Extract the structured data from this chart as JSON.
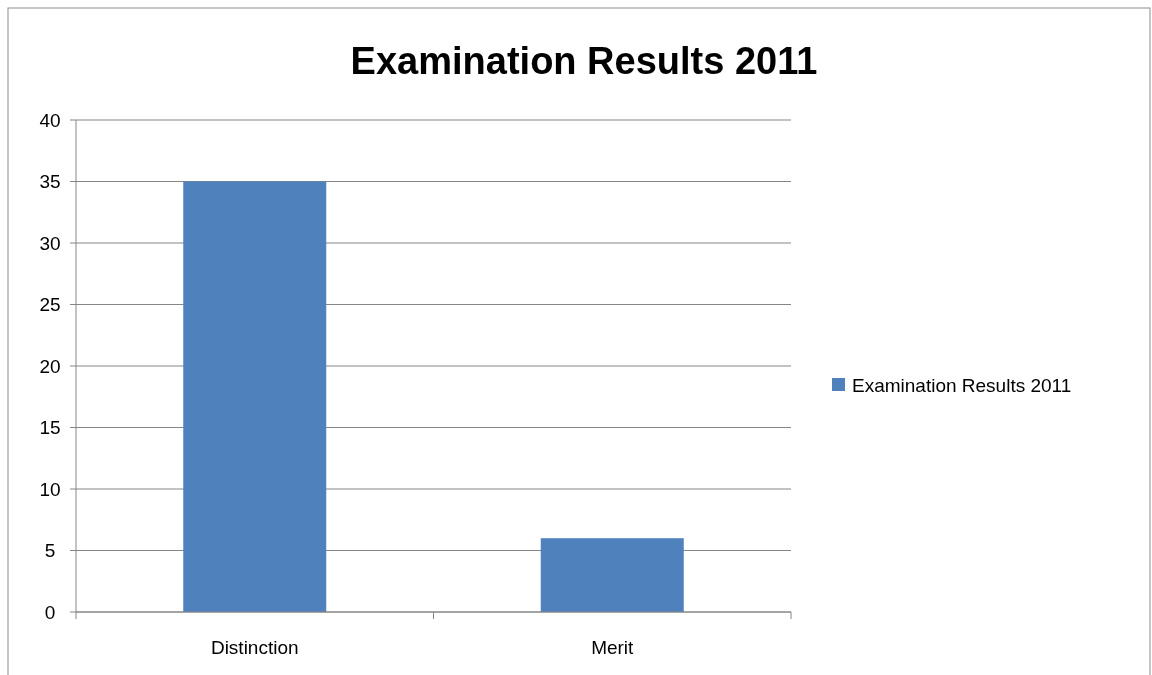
{
  "chart_data": {
    "type": "bar",
    "title": "Examination Results 2011",
    "categories": [
      "Distinction",
      "Merit"
    ],
    "series": [
      {
        "name": "Examination Results 2011",
        "color": "#4f81bd",
        "values": [
          35,
          6
        ]
      }
    ],
    "ylim": [
      0,
      40
    ],
    "yticks": [
      0,
      5,
      10,
      15,
      20,
      25,
      30,
      35,
      40
    ],
    "grid": "y",
    "legend": "right"
  }
}
